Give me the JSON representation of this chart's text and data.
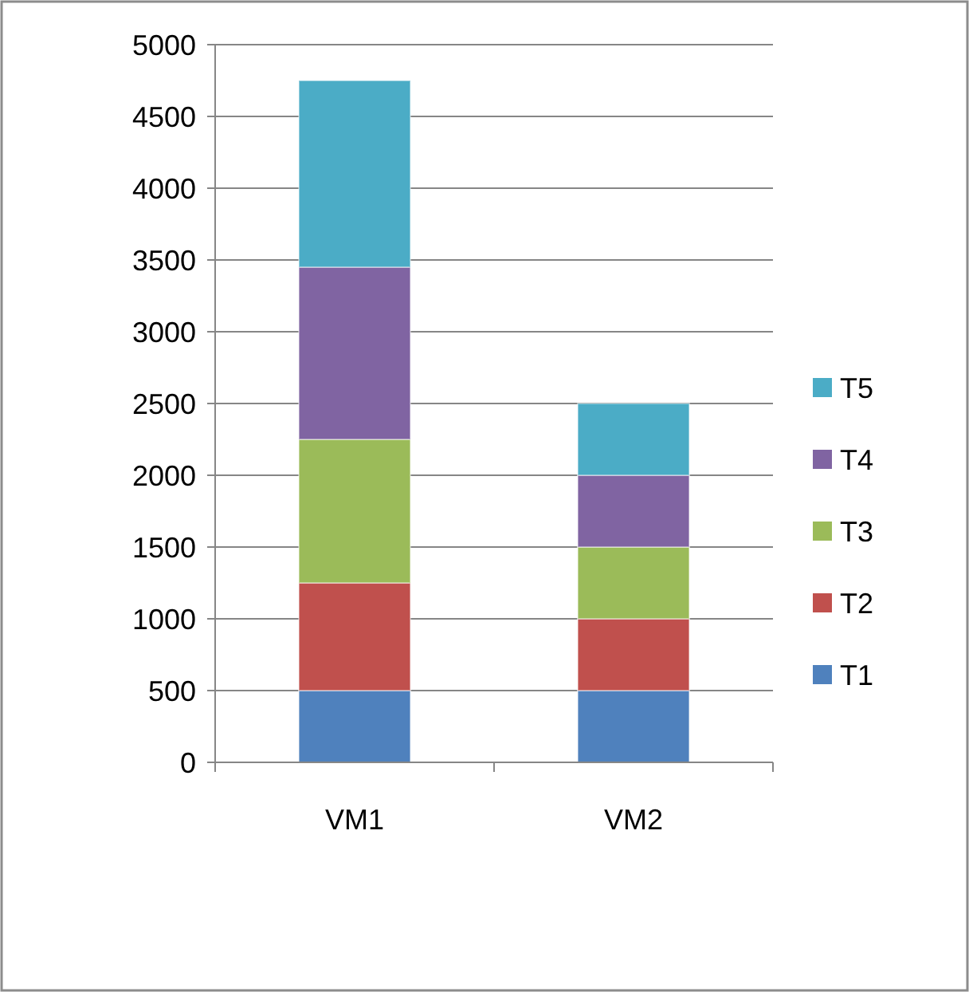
{
  "chart_data": {
    "type": "bar",
    "stacked": true,
    "categories": [
      "VM1",
      "VM2"
    ],
    "series": [
      {
        "name": "T1",
        "color": "#4f81bd",
        "values": [
          500,
          500
        ]
      },
      {
        "name": "T2",
        "color": "#c0504d",
        "values": [
          750,
          500
        ]
      },
      {
        "name": "T3",
        "color": "#9bbb59",
        "values": [
          1000,
          500
        ]
      },
      {
        "name": "T4",
        "color": "#8064a2",
        "values": [
          1200,
          500
        ]
      },
      {
        "name": "T5",
        "color": "#4bacc6",
        "values": [
          1300,
          500
        ]
      }
    ],
    "ylim": [
      0,
      5000
    ],
    "yticks": [
      0,
      500,
      1000,
      1500,
      2000,
      2500,
      3000,
      3500,
      4000,
      4500,
      5000
    ],
    "grid": "y",
    "legend": "right"
  }
}
